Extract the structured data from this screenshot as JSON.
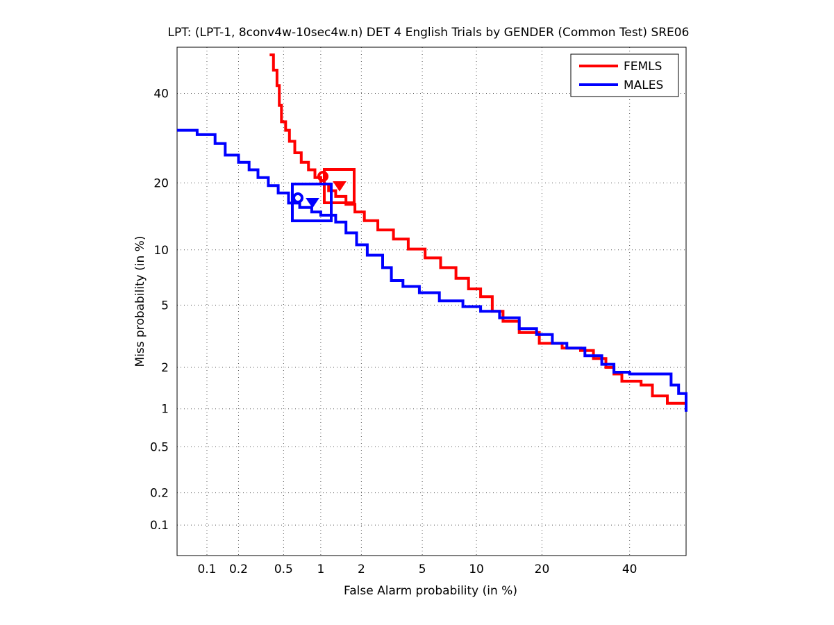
{
  "chart_data": {
    "type": "line",
    "title": "LPT: (LPT-1, 8conv4w-10sec4w.n) DET 4 English Trials by GENDER (Common Test) SRE06",
    "xlabel": "False Alarm probability (in %)",
    "ylabel": "Miss probability (in %)",
    "scale": "normal-deviate (DET)",
    "xlim": [
      0.05,
      55
    ],
    "ylim": [
      0.05,
      52
    ],
    "xticks": [
      0.1,
      0.2,
      0.5,
      1,
      2,
      5,
      10,
      20,
      40
    ],
    "xtick_labels": [
      "0.1",
      "0.2",
      "0.5",
      "1",
      "2",
      "5",
      "10",
      "20",
      "40"
    ],
    "yticks": [
      0.1,
      0.2,
      0.5,
      1,
      2,
      5,
      10,
      20,
      40
    ],
    "ytick_labels": [
      "0.1",
      "0.2",
      "0.5",
      "1",
      "2",
      "5",
      "10",
      "20",
      "40"
    ],
    "grid": true,
    "legend_position": "top-right",
    "series": [
      {
        "name": "FEMLS",
        "color": "#ff0000",
        "points": [
          [
            0.38,
            50
          ],
          [
            0.41,
            46
          ],
          [
            0.44,
            42
          ],
          [
            0.46,
            37
          ],
          [
            0.48,
            33
          ],
          [
            0.52,
            31
          ],
          [
            0.56,
            28.5
          ],
          [
            0.62,
            26
          ],
          [
            0.7,
            24
          ],
          [
            0.8,
            22.5
          ],
          [
            0.9,
            21
          ],
          [
            1.0,
            19.8
          ],
          [
            1.15,
            18.6
          ],
          [
            1.3,
            17.6
          ],
          [
            1.55,
            16.3
          ],
          [
            1.8,
            15.1
          ],
          [
            2.1,
            13.8
          ],
          [
            2.6,
            12.5
          ],
          [
            3.3,
            11.3
          ],
          [
            4.1,
            10.1
          ],
          [
            5.2,
            9.1
          ],
          [
            6.4,
            8.1
          ],
          [
            7.8,
            7.1
          ],
          [
            9.1,
            6.2
          ],
          [
            10.5,
            5.6
          ],
          [
            12.0,
            4.6
          ],
          [
            13.5,
            4.0
          ],
          [
            16.0,
            3.4
          ],
          [
            19.5,
            2.9
          ],
          [
            24.0,
            2.7
          ],
          [
            28.0,
            2.6
          ],
          [
            31.0,
            2.3
          ],
          [
            34.0,
            2.0
          ],
          [
            36.0,
            1.8
          ],
          [
            38.0,
            1.6
          ],
          [
            43.0,
            1.5
          ],
          [
            46.0,
            1.25
          ],
          [
            50.0,
            1.1
          ],
          [
            55.0,
            1.05
          ]
        ]
      },
      {
        "name": "MALES",
        "color": "#0000ff",
        "points": [
          [
            0.05,
            31
          ],
          [
            0.08,
            30
          ],
          [
            0.12,
            28
          ],
          [
            0.15,
            25.5
          ],
          [
            0.2,
            24
          ],
          [
            0.25,
            22.5
          ],
          [
            0.3,
            21
          ],
          [
            0.37,
            19.5
          ],
          [
            0.45,
            18.2
          ],
          [
            0.55,
            16.5
          ],
          [
            0.68,
            15.8
          ],
          [
            0.85,
            15.1
          ],
          [
            1.0,
            14.6
          ],
          [
            1.3,
            13.6
          ],
          [
            1.55,
            12.1
          ],
          [
            1.85,
            10.6
          ],
          [
            2.2,
            9.4
          ],
          [
            2.8,
            8.1
          ],
          [
            3.2,
            6.9
          ],
          [
            3.8,
            6.4
          ],
          [
            4.8,
            5.9
          ],
          [
            6.3,
            5.3
          ],
          [
            8.5,
            4.9
          ],
          [
            10.5,
            4.6
          ],
          [
            13.0,
            4.2
          ],
          [
            16.0,
            3.6
          ],
          [
            19.0,
            3.3
          ],
          [
            22.0,
            2.9
          ],
          [
            25.0,
            2.7
          ],
          [
            29.0,
            2.4
          ],
          [
            33.0,
            2.1
          ],
          [
            36.0,
            1.85
          ],
          [
            40.0,
            1.8
          ],
          [
            48.0,
            1.8
          ],
          [
            51.0,
            1.5
          ],
          [
            53.0,
            1.3
          ],
          [
            55.0,
            1.05
          ],
          [
            55.0,
            0.95
          ]
        ]
      }
    ]
  }
}
